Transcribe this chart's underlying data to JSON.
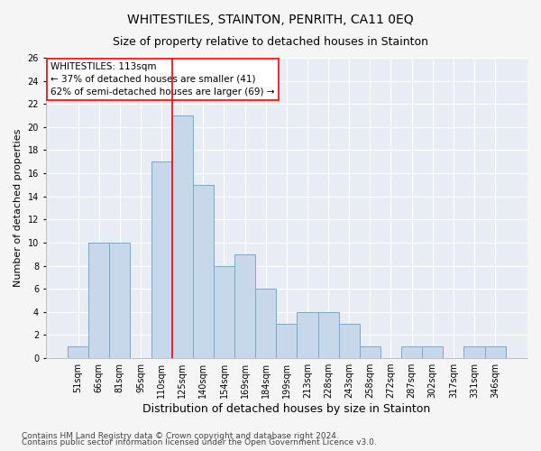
{
  "title": "WHITESTILES, STAINTON, PENRITH, CA11 0EQ",
  "subtitle": "Size of property relative to detached houses in Stainton",
  "xlabel": "Distribution of detached houses by size in Stainton",
  "ylabel": "Number of detached properties",
  "categories": [
    "51sqm",
    "66sqm",
    "81sqm",
    "95sqm",
    "110sqm",
    "125sqm",
    "140sqm",
    "154sqm",
    "169sqm",
    "184sqm",
    "199sqm",
    "213sqm",
    "228sqm",
    "243sqm",
    "258sqm",
    "272sqm",
    "287sqm",
    "302sqm",
    "317sqm",
    "331sqm",
    "346sqm"
  ],
  "values": [
    1,
    10,
    10,
    0,
    17,
    21,
    15,
    8,
    9,
    6,
    3,
    4,
    4,
    3,
    1,
    0,
    1,
    1,
    0,
    1,
    1
  ],
  "bar_color": "#c8d8eb",
  "bar_edge_color": "#7aaac8",
  "background_color": "#e8edf4",
  "grid_color": "#ffffff",
  "ylim": [
    0,
    26
  ],
  "yticks": [
    0,
    2,
    4,
    6,
    8,
    10,
    12,
    14,
    16,
    18,
    20,
    22,
    24,
    26
  ],
  "vline_x_index": 4.5,
  "vline_color": "red",
  "annotation_box_text": "WHITESTILES: 113sqm\n← 37% of detached houses are smaller (41)\n62% of semi-detached houses are larger (69) →",
  "footer_line1": "Contains HM Land Registry data © Crown copyright and database right 2024.",
  "footer_line2": "Contains public sector information licensed under the Open Government Licence v3.0.",
  "title_fontsize": 10,
  "subtitle_fontsize": 9,
  "xlabel_fontsize": 9,
  "ylabel_fontsize": 8,
  "tick_fontsize": 7,
  "annotation_fontsize": 7.5,
  "footer_fontsize": 6.5,
  "fig_bg": "#f5f5f5"
}
